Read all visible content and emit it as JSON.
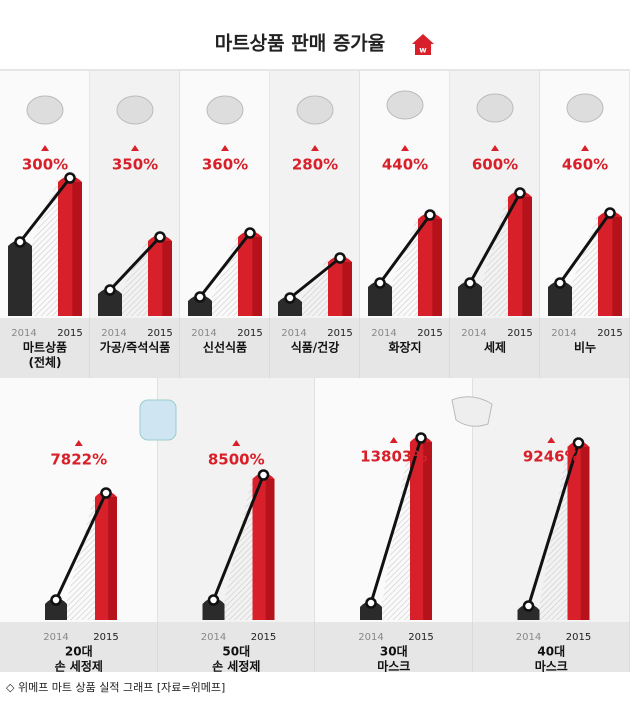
{
  "title": "마트상품 판매 증가율",
  "badge": "w",
  "top_panels": [
    {
      "growth": "300%",
      "years": [
        "2014",
        "2015"
      ],
      "name": [
        "마트상품",
        "(전체)"
      ]
    },
    {
      "growth": "350%",
      "years": [
        "2014",
        "2015"
      ],
      "name": [
        "가공/즉석식품"
      ]
    },
    {
      "growth": "360%",
      "years": [
        "2014",
        "2015"
      ],
      "name": [
        "신선식품"
      ]
    },
    {
      "growth": "280%",
      "years": [
        "2014",
        "2015"
      ],
      "name": [
        "식품/건강"
      ]
    },
    {
      "growth": "440%",
      "years": [
        "2014",
        "2015"
      ],
      "name": [
        "화장지"
      ]
    },
    {
      "growth": "600%",
      "years": [
        "2014",
        "2015"
      ],
      "name": [
        "세제"
      ]
    },
    {
      "growth": "460%",
      "years": [
        "2014",
        "2015"
      ],
      "name": [
        "비누"
      ]
    }
  ],
  "bottom_panels": [
    {
      "growth": "7822%",
      "years": [
        "2014",
        "2015"
      ],
      "name": [
        "20대",
        "손 세정제"
      ]
    },
    {
      "growth": "8500%",
      "years": [
        "2014",
        "2015"
      ],
      "name": [
        "50대",
        "손 세정제"
      ]
    },
    {
      "growth": "13803%",
      "years": [
        "2014",
        "2015"
      ],
      "name": [
        "30대",
        "마스크"
      ]
    },
    {
      "growth": "9246%",
      "years": [
        "2014",
        "2015"
      ],
      "name": [
        "40대",
        "마스크"
      ]
    }
  ],
  "caption": "◇ 위메프 마트 상품 실적 그래프 [자료=위메프]"
}
